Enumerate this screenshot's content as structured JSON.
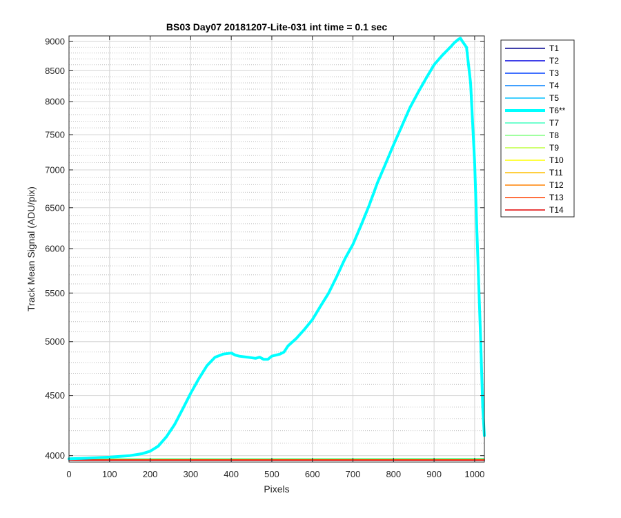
{
  "chart_data": {
    "type": "line",
    "title": "BS03 Day07 20181207-Lite-031 int time = 0.1 sec",
    "xlabel": "Pixels",
    "ylabel": "Track Mean Signal (ADU/pix)",
    "xlim": [
      0,
      1024
    ],
    "ylim": [
      3950,
      9100
    ],
    "y_scale": "log",
    "grid": true,
    "minor_grid": true,
    "legend_position": "outside-right",
    "x_ticks": [
      0,
      100,
      200,
      300,
      400,
      500,
      600,
      700,
      800,
      900,
      1000
    ],
    "x_tick_labels": [
      "0",
      "100",
      "200",
      "300",
      "400",
      "500",
      "600",
      "700",
      "800",
      "900",
      "1000"
    ],
    "y_ticks": [
      4000,
      4500,
      5000,
      5500,
      6000,
      6500,
      7000,
      7500,
      8000,
      8500,
      9000
    ],
    "y_tick_labels": [
      "4000",
      "4500",
      "5000",
      "5500",
      "6000",
      "6500",
      "7000",
      "7500",
      "8000",
      "8500",
      "9000"
    ],
    "y_minor_ticks": [
      4100,
      4200,
      4300,
      4400,
      4600,
      4700,
      4800,
      4900,
      5100,
      5200,
      5300,
      5400,
      5600,
      5700,
      5800,
      5900,
      6100,
      6200,
      6300,
      6400,
      6600,
      6700,
      6800,
      6900,
      7100,
      7200,
      7300,
      7400,
      7600,
      7700,
      7800,
      7900,
      8100,
      8200,
      8300,
      8400,
      8600,
      8700,
      8800,
      8900
    ],
    "series": [
      {
        "name": "T1",
        "color": "#00008f",
        "width": 1.5,
        "x": [
          0,
          1024
        ],
        "y": [
          3965,
          3965
        ]
      },
      {
        "name": "T2",
        "color": "#0000e0",
        "width": 1.5,
        "x": [
          0,
          1024
        ],
        "y": [
          3965,
          3965
        ]
      },
      {
        "name": "T3",
        "color": "#0040ff",
        "width": 1.5,
        "x": [
          0,
          1024
        ],
        "y": [
          3966,
          3966
        ]
      },
      {
        "name": "T4",
        "color": "#0080ff",
        "width": 1.5,
        "x": [
          0,
          1024
        ],
        "y": [
          3966,
          3966
        ]
      },
      {
        "name": "T5",
        "color": "#00bfff",
        "width": 1.5,
        "x": [
          0,
          1024
        ],
        "y": [
          3967,
          3967
        ]
      },
      {
        "name": "T6**",
        "color": "#00ffff",
        "width": 4,
        "x": [
          0,
          30,
          60,
          100,
          150,
          180,
          200,
          220,
          240,
          260,
          280,
          300,
          320,
          340,
          360,
          380,
          400,
          410,
          420,
          440,
          460,
          470,
          480,
          490,
          500,
          510,
          520,
          530,
          540,
          560,
          580,
          600,
          620,
          640,
          660,
          680,
          700,
          720,
          740,
          760,
          780,
          800,
          820,
          840,
          860,
          880,
          900,
          920,
          940,
          950,
          960,
          965,
          970,
          980,
          990,
          1000,
          1005,
          1010,
          1015,
          1020,
          1024
        ],
        "y": [
          3975,
          3978,
          3982,
          3988,
          4000,
          4015,
          4035,
          4075,
          4150,
          4250,
          4380,
          4520,
          4650,
          4770,
          4850,
          4880,
          4890,
          4870,
          4860,
          4850,
          4840,
          4850,
          4830,
          4830,
          4860,
          4870,
          4880,
          4900,
          4960,
          5030,
          5120,
          5220,
          5360,
          5500,
          5680,
          5880,
          6050,
          6280,
          6530,
          6820,
          7080,
          7350,
          7620,
          7900,
          8140,
          8370,
          8600,
          8760,
          8900,
          8980,
          9040,
          9060,
          9000,
          8900,
          8300,
          7100,
          6300,
          5600,
          5000,
          4400,
          4160
        ]
      },
      {
        "name": "T7",
        "color": "#40ffbf",
        "width": 1.5,
        "x": [
          0,
          1024
        ],
        "y": [
          3975,
          3978
        ]
      },
      {
        "name": "T8",
        "color": "#80ff80",
        "width": 1.5,
        "x": [
          0,
          1024
        ],
        "y": [
          3972,
          3973
        ]
      },
      {
        "name": "T9",
        "color": "#bfff40",
        "width": 1.5,
        "x": [
          0,
          1024
        ],
        "y": [
          3970,
          3971
        ]
      },
      {
        "name": "T10",
        "color": "#ffff00",
        "width": 1.5,
        "x": [
          0,
          1024
        ],
        "y": [
          3969,
          3969
        ]
      },
      {
        "name": "T11",
        "color": "#ffbf00",
        "width": 1.5,
        "x": [
          0,
          1024
        ],
        "y": [
          3968,
          3968
        ]
      },
      {
        "name": "T12",
        "color": "#ff8000",
        "width": 1.5,
        "x": [
          0,
          1024
        ],
        "y": [
          3967,
          3967
        ]
      },
      {
        "name": "T13",
        "color": "#ff4000",
        "width": 1.5,
        "x": [
          0,
          1024
        ],
        "y": [
          3966,
          3966
        ]
      },
      {
        "name": "T14",
        "color": "#e00000",
        "width": 1.5,
        "x": [
          0,
          1024
        ],
        "y": [
          3965,
          3965
        ]
      }
    ]
  }
}
